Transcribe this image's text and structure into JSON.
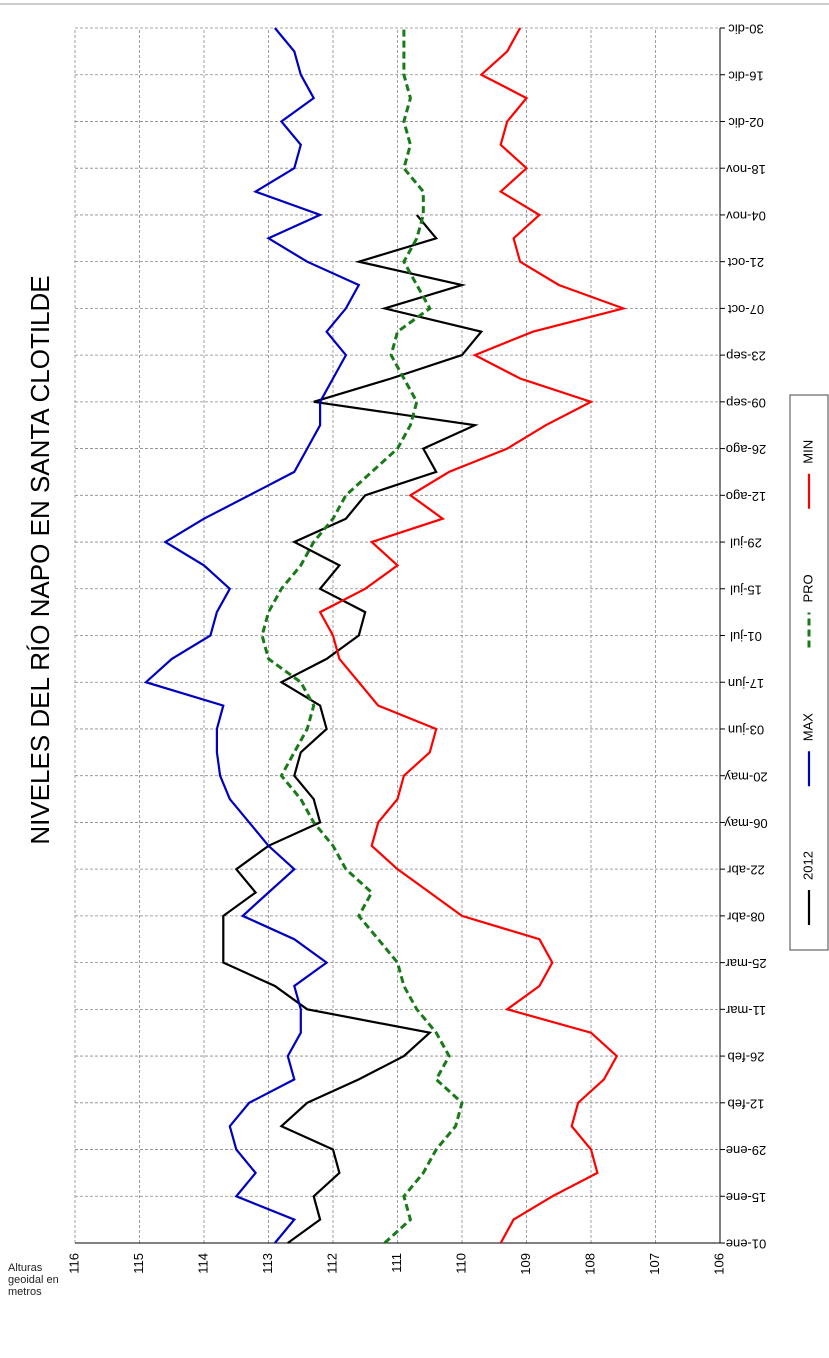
{
  "chart_data": {
    "type": "line",
    "title": "NIVELES DEL RÍO NAPO EN SANTA CLOTILDE",
    "y_label": "Alturas geoidal en metros",
    "categories": [
      "01-ene",
      null,
      "15-ene",
      null,
      "29-ene",
      null,
      "12-feb",
      null,
      "26-feb",
      null,
      "11-mar",
      null,
      "25-mar",
      null,
      "08-abr",
      null,
      "22-abr",
      null,
      "06-may",
      null,
      "20-may",
      null,
      "03-jun",
      null,
      "17-jun",
      null,
      "01-jul",
      null,
      "15-jul",
      null,
      "29-jul",
      null,
      "12-ago",
      null,
      "26-ago",
      null,
      "09-sep",
      null,
      "23-sep",
      null,
      "07-oct",
      null,
      "21-oct",
      null,
      "04-nov",
      null,
      "18-nov",
      null,
      "02-dic",
      null,
      "16-dic",
      null,
      "30-dic"
    ],
    "ylim": [
      106,
      116
    ],
    "yticks": [
      106,
      107,
      108,
      109,
      110,
      111,
      112,
      113,
      114,
      115,
      116
    ],
    "grid": true,
    "legend": "bottom",
    "series": [
      {
        "name": "2012",
        "color": "#000000",
        "dash": false,
        "values": [
          112.7,
          112.2,
          112.3,
          111.9,
          112.0,
          112.8,
          112.4,
          111.6,
          110.9,
          110.5,
          112.4,
          112.9,
          113.7,
          113.7,
          113.7,
          113.2,
          113.5,
          113.0,
          112.2,
          112.3,
          112.6,
          112.5,
          112.1,
          112.2,
          112.8,
          112.1,
          111.6,
          111.5,
          112.2,
          111.9,
          112.6,
          111.8,
          111.5,
          110.4,
          110.6,
          109.8,
          112.3,
          111.1,
          110.0,
          109.7,
          111.2,
          110.0,
          111.6,
          110.4,
          110.7,
          null,
          null,
          null,
          null,
          null,
          null,
          null,
          null
        ]
      },
      {
        "name": "MAX",
        "color": "#0000c0",
        "dash": false,
        "values": [
          112.9,
          112.6,
          113.5,
          113.2,
          113.5,
          113.6,
          113.3,
          112.6,
          112.7,
          112.5,
          112.5,
          112.6,
          112.1,
          112.6,
          113.4,
          113.0,
          112.6,
          113.0,
          113.3,
          113.6,
          113.75,
          113.8,
          113.8,
          113.7,
          114.9,
          114.5,
          113.9,
          113.8,
          113.6,
          114.0,
          114.6,
          114.0,
          113.3,
          112.6,
          112.4,
          112.2,
          112.2,
          112.0,
          111.8,
          112.1,
          111.8,
          111.6,
          112.4,
          113.0,
          112.2,
          113.2,
          112.6,
          112.5,
          112.8,
          112.3,
          112.5,
          112.6,
          112.9
        ]
      },
      {
        "name": "PRO",
        "color": "#1a7a1a",
        "dash": true,
        "values": [
          111.2,
          110.8,
          110.9,
          110.6,
          110.4,
          110.1,
          110.0,
          110.4,
          110.2,
          110.4,
          110.7,
          110.9,
          111.0,
          111.3,
          111.6,
          111.4,
          111.8,
          112.0,
          112.3,
          112.5,
          112.8,
          112.6,
          112.4,
          112.3,
          112.5,
          113.0,
          113.1,
          113.0,
          112.8,
          112.5,
          112.3,
          112.0,
          111.8,
          111.4,
          111.0,
          110.8,
          110.7,
          110.9,
          111.1,
          111.0,
          110.5,
          110.7,
          110.9,
          110.7,
          110.6,
          110.6,
          110.9,
          110.8,
          110.9,
          110.8,
          110.9,
          110.9,
          110.9
        ]
      },
      {
        "name": "MIN",
        "color": "#ff0000",
        "dash": false,
        "values": [
          109.4,
          109.2,
          108.6,
          107.9,
          108.0,
          108.3,
          108.2,
          107.8,
          107.6,
          108.0,
          109.3,
          108.8,
          108.6,
          108.8,
          110.0,
          110.5,
          111.0,
          111.4,
          111.3,
          111.0,
          110.9,
          110.5,
          110.4,
          111.3,
          111.6,
          111.9,
          112.0,
          112.2,
          111.5,
          111.0,
          111.4,
          110.3,
          110.8,
          110.2,
          109.3,
          108.7,
          108.0,
          109.1,
          109.8,
          108.9,
          107.5,
          108.5,
          109.1,
          109.2,
          108.8,
          109.4,
          109.0,
          109.4,
          109.3,
          109.0,
          109.7,
          109.3,
          109.1
        ]
      }
    ]
  }
}
